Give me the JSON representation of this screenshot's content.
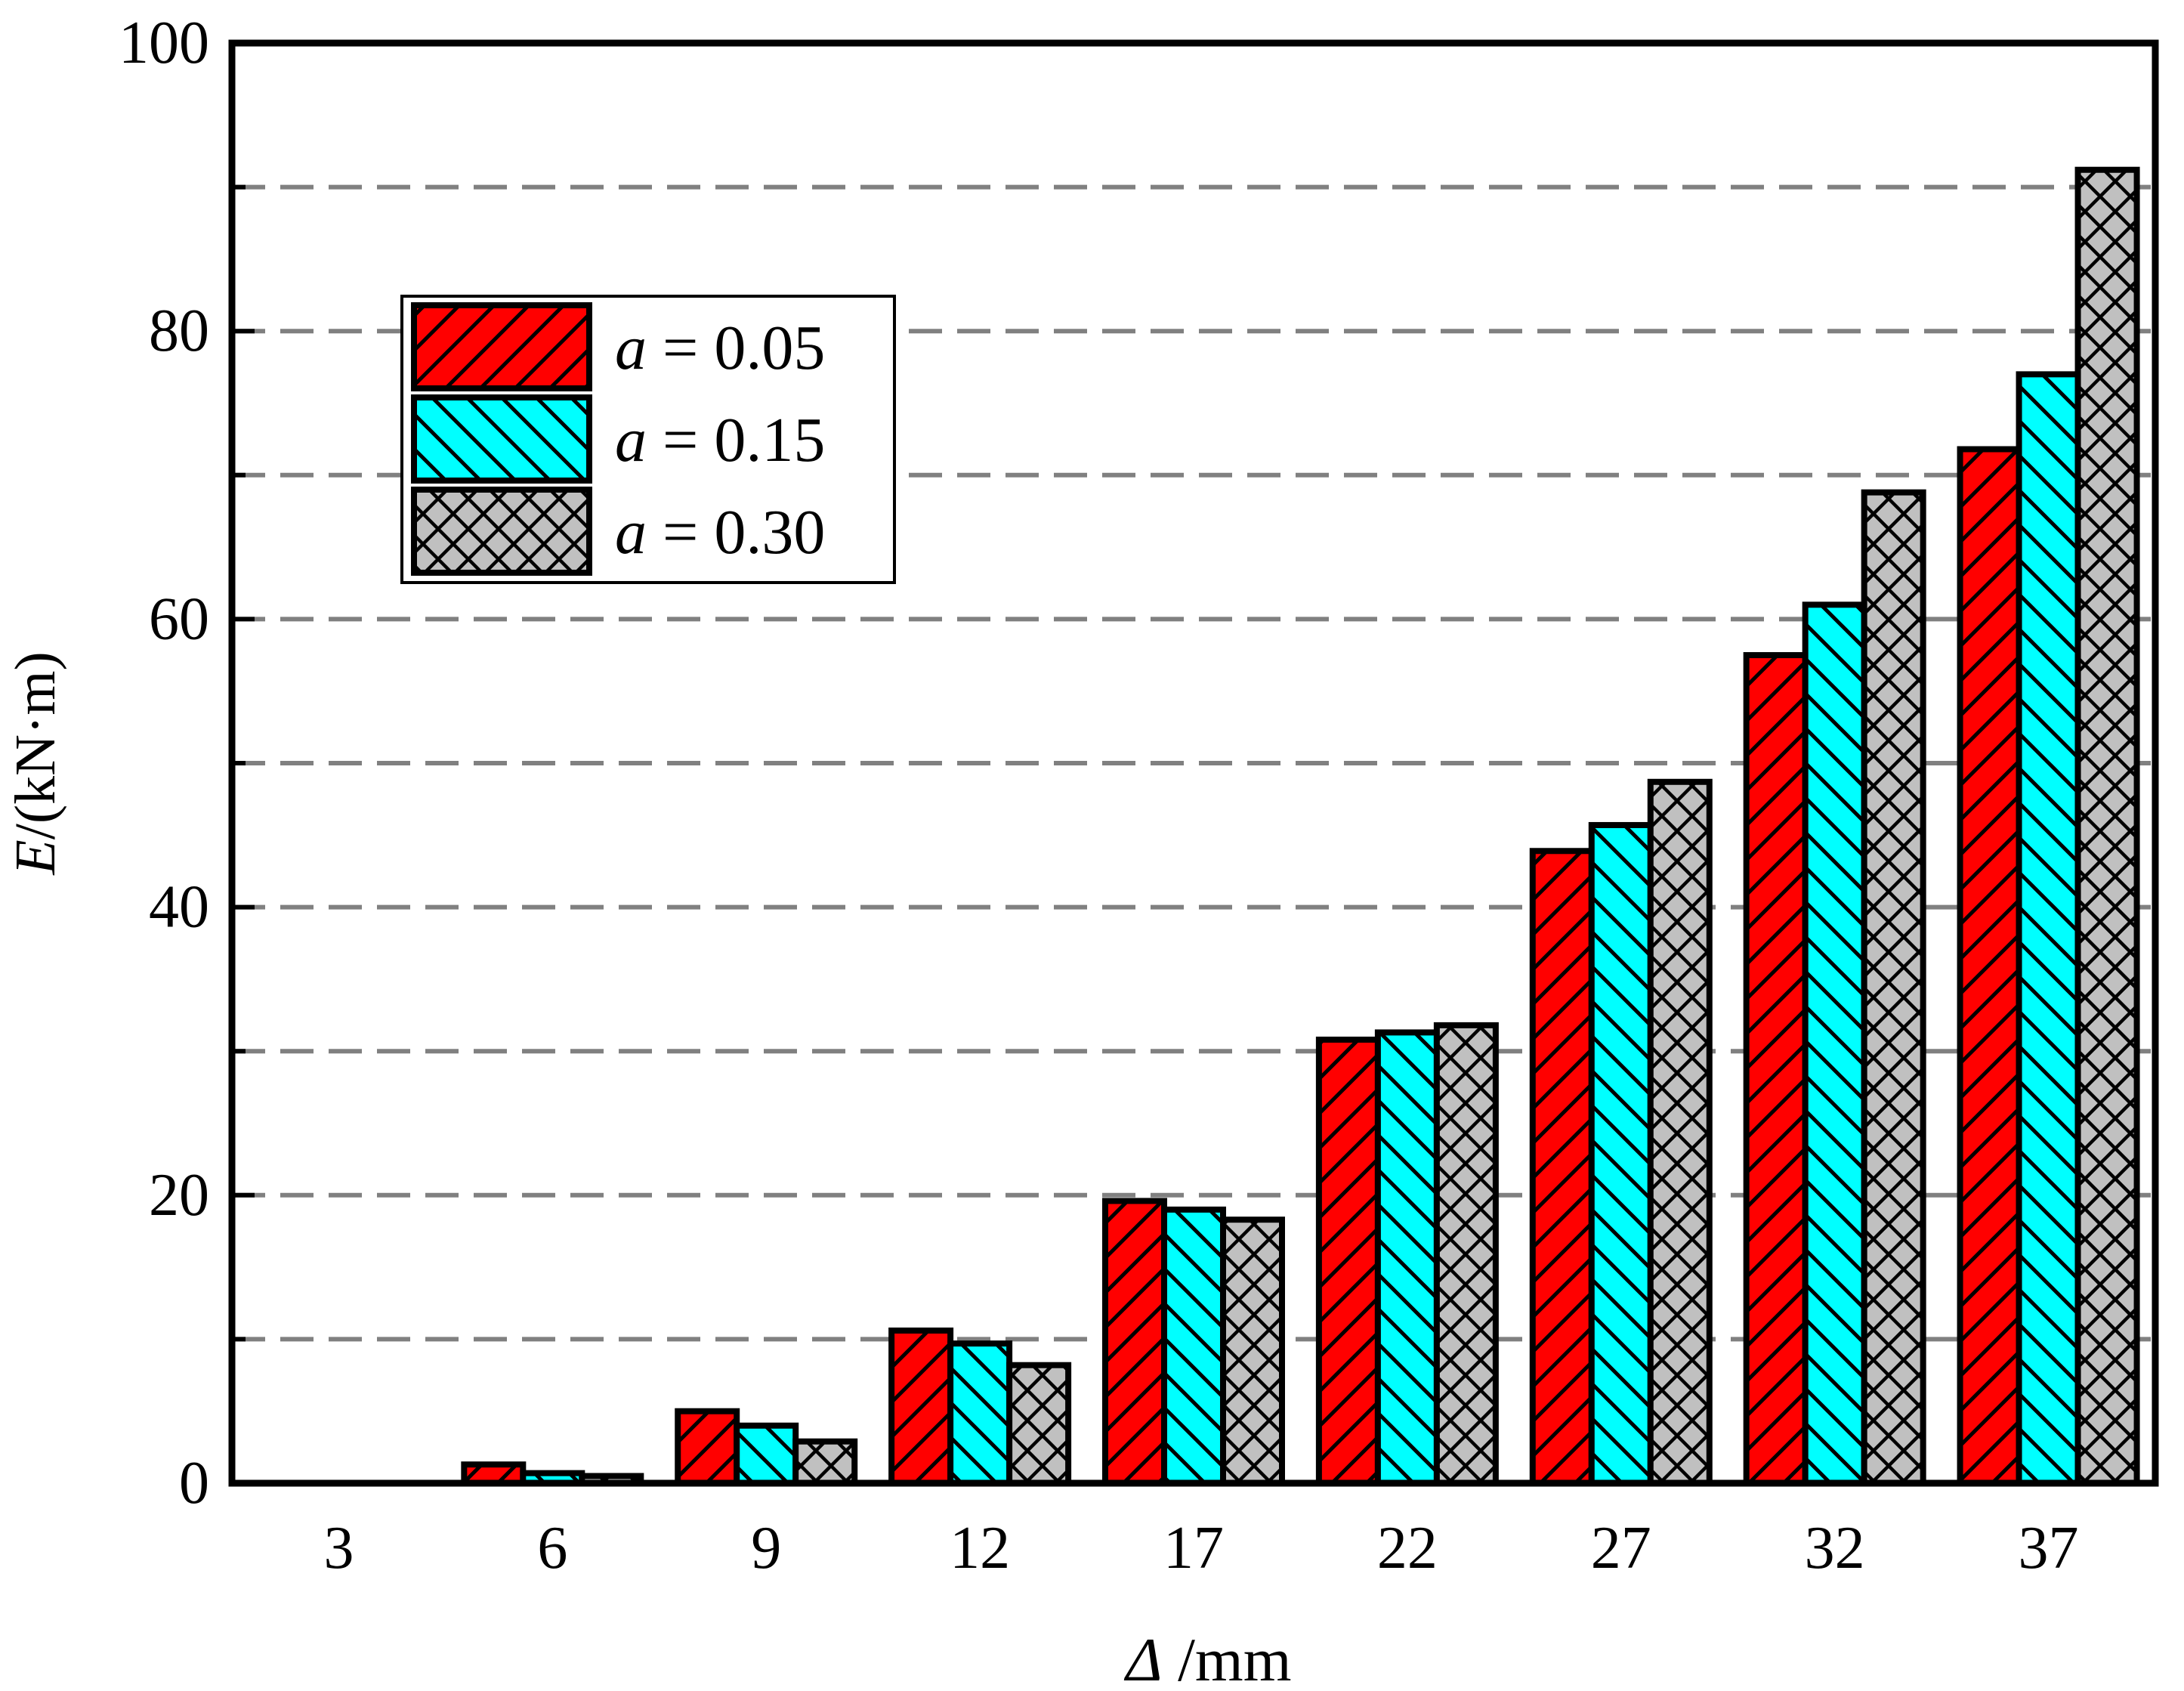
{
  "chart_data": {
    "type": "bar",
    "xlabel_symbol": "Δ",
    "xlabel_unit": " /mm",
    "ylabel_symbol": "E",
    "ylabel_unit": "/(kN·m)",
    "categories": [
      "3",
      "6",
      "9",
      "12",
      "17",
      "22",
      "27",
      "32",
      "37"
    ],
    "ylim": [
      0,
      100
    ],
    "yticks": [
      "0",
      "20",
      "40",
      "60",
      "80",
      "100"
    ],
    "grid": "dashed horizontal lines at 10-unit intervals",
    "legend_position": "upper-left",
    "series": [
      {
        "name_symbol": "a",
        "name_value": " = 0.05",
        "color": "#ff0000",
        "hatch": "forward-diagonal",
        "values": [
          0,
          1.3,
          5.0,
          10.6,
          19.6,
          30.8,
          43.9,
          57.5,
          71.8
        ]
      },
      {
        "name_symbol": "a",
        "name_value": " = 0.15",
        "color": "#00ffff",
        "hatch": "backward-diagonal",
        "values": [
          0,
          0.7,
          4.0,
          9.7,
          19.0,
          31.3,
          45.7,
          61.0,
          77.0
        ]
      },
      {
        "name_symbol": "a",
        "name_value": " = 0.30",
        "color": "#c0c0c0",
        "hatch": "crosshatch",
        "values": [
          0,
          0.5,
          2.9,
          8.2,
          18.3,
          31.8,
          48.7,
          68.8,
          91.2
        ]
      }
    ]
  }
}
